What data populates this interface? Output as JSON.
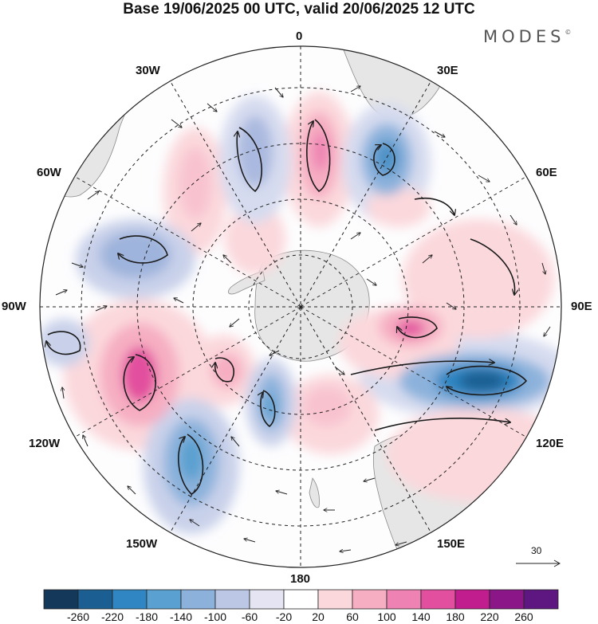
{
  "title": "Base 19/06/2025 00 UTC, valid 20/06/2025 12 UTC",
  "brand": "MODES",
  "brand_mark": "©",
  "longitude_labels": {
    "top": "0",
    "bottom": "180",
    "left": "90W",
    "right": "90E",
    "w30": "30W",
    "w60": "60W",
    "w120": "120W",
    "w150": "150W",
    "e30": "30E",
    "e60": "60E",
    "e120": "120E",
    "e150": "150E"
  },
  "vector_scale": {
    "value": "30"
  },
  "colorbar": {
    "ticks": [
      "-260",
      "-220",
      "-180",
      "-140",
      "-100",
      "-60",
      "-20",
      "20",
      "60",
      "100",
      "140",
      "180",
      "220",
      "260"
    ],
    "colors": [
      "#14385a",
      "#1b5f92",
      "#2f86c2",
      "#5aa0d0",
      "#8cb2dc",
      "#bcc7e6",
      "#e4e4f2",
      "#ffffff",
      "#fbd8dc",
      "#f6aec2",
      "#ee82b2",
      "#e24f9e",
      "#c21d8e",
      "#8a1688",
      "#5e1780"
    ]
  },
  "colors": {
    "land": "#e8e8e8",
    "coast": "#777777",
    "grid": "#222222",
    "arrow": "#222222"
  },
  "icons": {
    "wind_vector": "arrow-icon"
  }
}
